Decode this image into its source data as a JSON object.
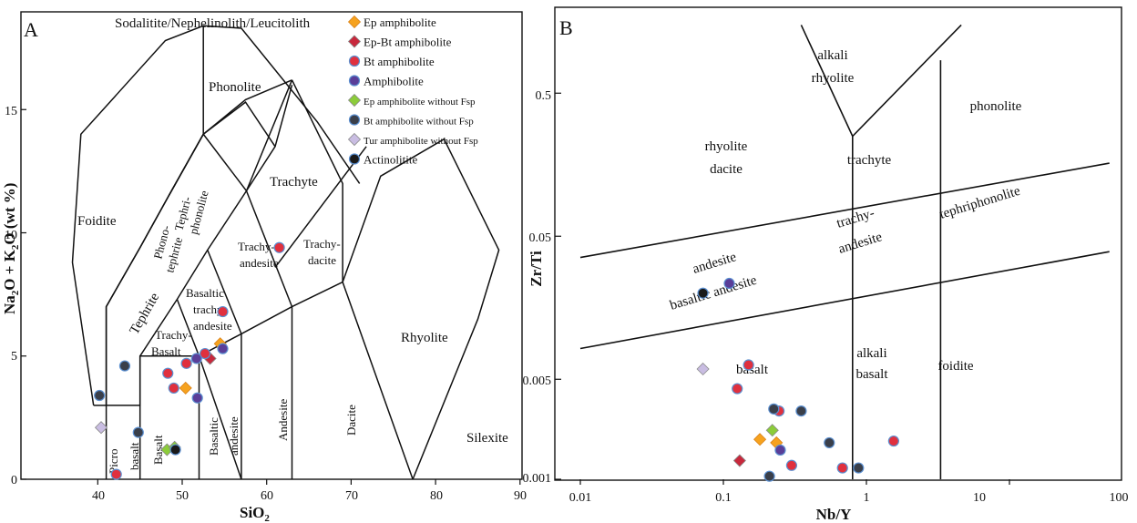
{
  "colors": {
    "ep_amphibolite": "#f6a21e",
    "ep_bt_amphibolite": "#c8283c",
    "bt_amphibolite": "#e0303e",
    "amphibolite": "#5a3e98",
    "ep_without_fsp": "#8ccc3a",
    "bt_without_fsp": "#3a3f4a",
    "tur_without_fsp": "#c9bde2",
    "actinolitite": "#1a1a1a",
    "marker_edge": "#5b8fd0"
  },
  "chart_data": [
    {
      "type": "scatter",
      "panel_label": "A",
      "xlabel": "SiO2",
      "ylabel": "Na2O + K2O (wt %)",
      "xlim": [
        35,
        90
      ],
      "ylim": [
        0,
        19
      ],
      "x_ticks": [
        "40",
        "50",
        "60",
        "70",
        "80",
        "90"
      ],
      "y_ticks": [
        "0",
        "5",
        "10",
        "15"
      ],
      "grid": false,
      "legend_position": "top-right",
      "field_labels": [
        "Sodalitite/Nephelinolith/Leucitolith",
        "Phonolite",
        "Foidite",
        "Phono-",
        "tephrite",
        "Tephri-",
        "phonolite",
        "Trachyte",
        "Tephrite",
        "Trachy-",
        "andesite",
        "Trachy-",
        "dacite",
        "Basaltic",
        "trachy",
        "andesite",
        "Trachy-",
        "Basalt",
        "Rhyolite",
        "Picro",
        "basalt",
        "Basalt",
        "Basaltic",
        "andesite",
        "Andesite",
        "Dacite",
        "Silexite"
      ],
      "series": [
        {
          "name": "Ep amphibolite",
          "marker": "diamond",
          "color_key": "ep_amphibolite",
          "points": [
            [
              54.5,
              5.5
            ],
            [
              50.4,
              3.7
            ]
          ]
        },
        {
          "name": "Ep-Bt amphibolite",
          "marker": "diamond",
          "color_key": "ep_bt_amphibolite",
          "points": [
            [
              53.3,
              4.9
            ]
          ]
        },
        {
          "name": "Bt amphibolite",
          "marker": "circle",
          "color_key": "bt_amphibolite",
          "points": [
            [
              61.5,
              9.4
            ],
            [
              54.8,
              6.8
            ],
            [
              52.7,
              5.1
            ],
            [
              50.5,
              4.7
            ],
            [
              48.3,
              4.3
            ],
            [
              49.0,
              3.7
            ],
            [
              42.2,
              0.2
            ]
          ]
        },
        {
          "name": "Amphibolite",
          "marker": "circle",
          "color_key": "amphibolite",
          "points": [
            [
              54.8,
              5.3
            ],
            [
              51.7,
              4.9
            ],
            [
              51.8,
              3.3
            ]
          ]
        },
        {
          "name": "Ep amphibolite without Fsp",
          "marker": "diamond",
          "color_key": "ep_without_fsp",
          "points": [
            [
              48.2,
              1.2
            ],
            [
              49.1,
              1.3
            ]
          ]
        },
        {
          "name": "Bt amphibolite without Fsp",
          "marker": "circle",
          "color_key": "bt_without_fsp",
          "points": [
            [
              43.2,
              4.6
            ],
            [
              40.2,
              3.4
            ],
            [
              44.8,
              1.9
            ]
          ]
        },
        {
          "name": "Tur amphibolite without Fsp",
          "marker": "diamond",
          "color_key": "tur_without_fsp",
          "points": [
            [
              40.4,
              2.1
            ]
          ]
        },
        {
          "name": "Actinolitite",
          "marker": "circle",
          "color_key": "actinolitite",
          "points": [
            [
              49.2,
              1.2
            ]
          ]
        }
      ]
    },
    {
      "type": "scatter",
      "panel_label": "B",
      "xlabel": "Nb/Y",
      "ylabel": "Zr/Ti",
      "xscale": "log",
      "yscale": "log",
      "xlim": [
        0.01,
        100
      ],
      "ylim": [
        0.001,
        1.5
      ],
      "x_ticks": [
        "0.01",
        "0.1",
        "1",
        "10",
        "100"
      ],
      "y_ticks": [
        "0.001",
        "0.005",
        "0.05",
        "0.5"
      ],
      "grid": false,
      "field_labels": [
        "alkali",
        "rhyolite",
        "phonolite",
        "rhyolite",
        "dacite",
        "trachyte",
        "tephriphonolite",
        "andesite",
        "basaltic andesite",
        "trachy-",
        "andesite",
        "basalt",
        "alkali",
        "basalt",
        "foidite"
      ],
      "series": [
        {
          "name": "Ep amphibolite",
          "marker": "diamond",
          "color_key": "ep_amphibolite",
          "points": [
            [
              0.18,
              0.0019
            ],
            [
              0.235,
              0.0018
            ]
          ]
        },
        {
          "name": "Ep-Bt amphibolite",
          "marker": "diamond",
          "color_key": "ep_bt_amphibolite",
          "points": [
            [
              0.13,
              0.00135
            ]
          ]
        },
        {
          "name": "Bt amphibolite",
          "marker": "circle",
          "color_key": "bt_amphibolite",
          "points": [
            [
              0.15,
              0.0063
            ],
            [
              0.125,
              0.0043
            ],
            [
              0.245,
              0.003
            ],
            [
              0.3,
              0.00125
            ],
            [
              0.68,
              0.0012
            ],
            [
              1.55,
              0.00185
            ]
          ]
        },
        {
          "name": "Amphibolite",
          "marker": "circle",
          "color_key": "amphibolite",
          "points": [
            [
              0.11,
              0.0234
            ],
            [
              0.25,
              0.0016
            ]
          ]
        },
        {
          "name": "Ep amphibolite without Fsp",
          "marker": "diamond",
          "color_key": "ep_without_fsp",
          "points": [
            [
              0.22,
              0.0022
            ]
          ]
        },
        {
          "name": "Bt amphibolite without Fsp",
          "marker": "circle",
          "color_key": "bt_without_fsp",
          "points": [
            [
              0.225,
              0.0031
            ],
            [
              0.35,
              0.003
            ],
            [
              0.55,
              0.0018
            ],
            [
              0.88,
              0.0012
            ],
            [
              0.21,
              0.00105
            ]
          ]
        },
        {
          "name": "Tur amphibolite without Fsp",
          "marker": "diamond",
          "color_key": "tur_without_fsp",
          "points": [
            [
              0.072,
              0.0059
            ]
          ]
        },
        {
          "name": "Actinolitite",
          "marker": "circle",
          "color_key": "actinolitite",
          "points": [
            [
              0.072,
              0.02
            ]
          ]
        }
      ]
    }
  ]
}
